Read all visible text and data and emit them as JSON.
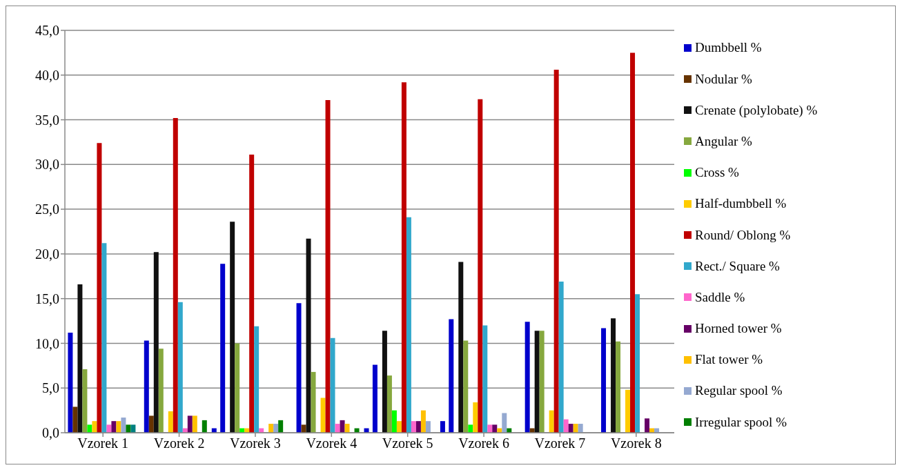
{
  "chart_data": {
    "type": "bar",
    "categories": [
      "Vzorek 1",
      "Vzorek 2",
      "Vzorek 3",
      "Vzorek 4",
      "Vzorek 5",
      "Vzorek 6",
      "Vzorek 7",
      "Vzorek 8"
    ],
    "series": [
      {
        "name": "Dumbbell %",
        "color": "#0000cc",
        "values": [
          11.2,
          10.3,
          18.9,
          14.5,
          7.6,
          12.7,
          12.4,
          11.7
        ]
      },
      {
        "name": "Nodular %",
        "color": "#663300",
        "values": [
          2.9,
          1.9,
          0,
          0.9,
          0,
          0,
          0.5,
          0
        ]
      },
      {
        "name": "Crenate (polylobate) %",
        "color": "#111111",
        "values": [
          16.6,
          20.2,
          23.6,
          21.7,
          11.4,
          19.1,
          11.4,
          12.8
        ]
      },
      {
        "name": "Angular %",
        "color": "#86a83e",
        "values": [
          7.1,
          9.4,
          10.0,
          6.8,
          6.4,
          10.3,
          11.4,
          10.2
        ]
      },
      {
        "name": "Cross %",
        "color": "#00ff00",
        "values": [
          0.9,
          0,
          0.5,
          0,
          2.5,
          0.9,
          0,
          0
        ]
      },
      {
        "name": "Half-dumbbell %",
        "color": "#ffcc00",
        "values": [
          1.3,
          2.4,
          0.5,
          3.9,
          1.3,
          3.4,
          2.5,
          4.8
        ]
      },
      {
        "name": "Round/ Oblong %",
        "color": "#c00000",
        "values": [
          32.4,
          35.2,
          31.1,
          37.2,
          39.2,
          37.3,
          40.6,
          42.5
        ]
      },
      {
        "name": "Rect./ Square %",
        "color": "#31a8cc",
        "values": [
          21.2,
          14.6,
          11.9,
          10.6,
          24.1,
          12.0,
          16.9,
          15.5
        ]
      },
      {
        "name": "Saddle %",
        "color": "#ff66cc",
        "values": [
          0.9,
          0.5,
          0.5,
          1.0,
          1.3,
          0.9,
          1.5,
          0
        ]
      },
      {
        "name": "Horned tower %",
        "color": "#660066",
        "values": [
          1.3,
          1.9,
          0,
          1.4,
          1.3,
          0.9,
          1.0,
          1.6
        ]
      },
      {
        "name": "Flat tower %",
        "color": "#ffc000",
        "values": [
          1.3,
          1.9,
          1.0,
          1.0,
          2.5,
          0.5,
          1.0,
          0.5
        ]
      },
      {
        "name": "Regular spool %",
        "color": "#95a9d1",
        "values": [
          1.7,
          0,
          1.0,
          0,
          1.3,
          2.2,
          1.0,
          0.5
        ]
      },
      {
        "name": "Irregular spool %",
        "color": "#007f00",
        "values": [
          0.9,
          1.4,
          1.4,
          0.5,
          0,
          0.5,
          0,
          0
        ]
      },
      {
        "color": "#008080",
        "values": [
          0.9,
          0,
          0,
          0,
          0,
          0,
          0,
          0
        ]
      },
      {
        "color": "#0000cc",
        "values": [
          0,
          0.5,
          0,
          0.5,
          1.3,
          0,
          0,
          0
        ]
      }
    ],
    "ylim": [
      0,
      45
    ],
    "yticks": [
      {
        "value": 0,
        "label": "0,0"
      },
      {
        "value": 5,
        "label": "5,0"
      },
      {
        "value": 10,
        "label": "10,0"
      },
      {
        "value": 15,
        "label": "15,0"
      },
      {
        "value": 20,
        "label": "20,0"
      },
      {
        "value": 25,
        "label": "25,0"
      },
      {
        "value": 30,
        "label": "30,0"
      },
      {
        "value": 35,
        "label": "35,0"
      },
      {
        "value": 40,
        "label": "40,0"
      },
      {
        "value": 45,
        "label": "45,0"
      }
    ],
    "grid": "y",
    "legend": "right"
  }
}
